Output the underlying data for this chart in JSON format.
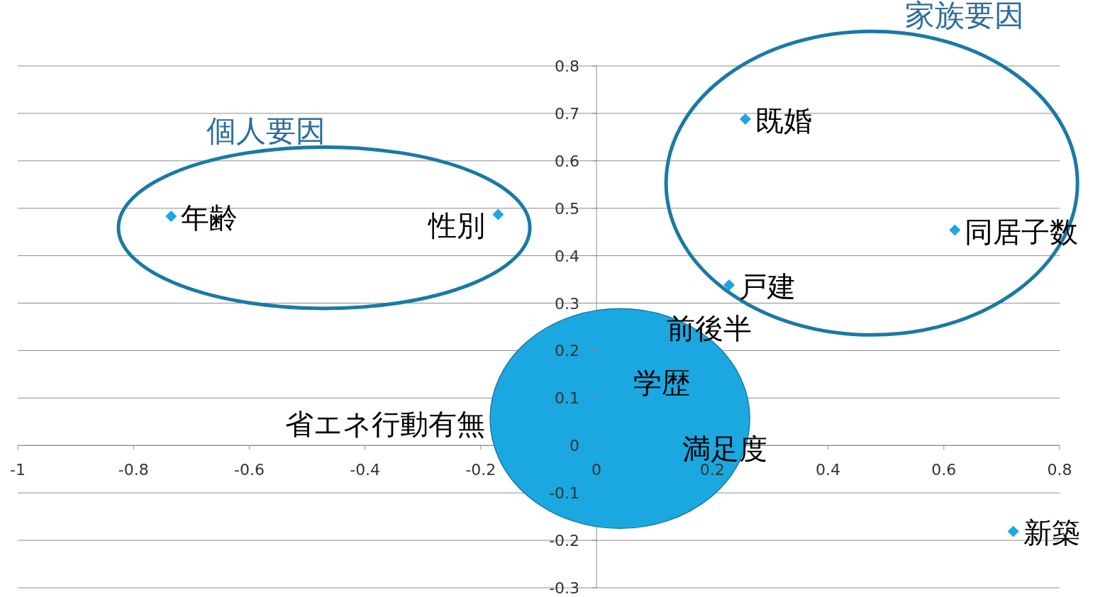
{
  "chart_data": {
    "type": "scatter",
    "x": [
      -0.735,
      -0.17,
      0.257,
      0.619,
      0.229,
      0.72
    ],
    "values": [
      0.483,
      0.487,
      0.688,
      0.454,
      0.338,
      -0.181
    ],
    "value_labels": [
      "年齢",
      "性別",
      "既婚",
      "同居子数",
      "戸建",
      "新築"
    ],
    "color": "#1ba8e0",
    "marker": "diamond",
    "xlim": [
      -1,
      0.8
    ],
    "xticks": [
      -1,
      -0.8,
      -0.6,
      -0.4,
      -0.2,
      0,
      0.2,
      0.4,
      0.6,
      0.8
    ],
    "ylim": [
      -0.3,
      0.8
    ],
    "yticks": [
      -0.3,
      -0.2,
      -0.1,
      0,
      0.1,
      0.2,
      0.3,
      0.4,
      0.5,
      0.6,
      0.7,
      0.8
    ],
    "grid": "y",
    "annotations": [
      "前後半",
      "学歴",
      "満足度",
      "省エネ行動有無",
      "個人要因",
      "家族要因"
    ]
  }
}
